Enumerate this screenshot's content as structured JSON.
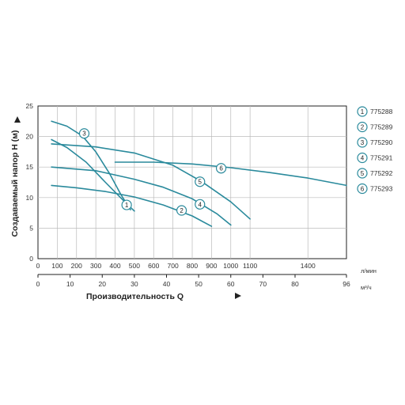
{
  "chart_data": {
    "type": "line",
    "ylabel": "Создаваемый напор Н (м)",
    "xlabel": "Производительность Q",
    "x_unit_lmin": "л/мин",
    "x_unit_m3h": "м³/ч",
    "ylim": [
      0,
      25
    ],
    "xlim_lmin": [
      0,
      1600
    ],
    "xlim_m3h": [
      0,
      96
    ],
    "y_ticks": [
      "0",
      "5",
      "10",
      "15",
      "20",
      "25"
    ],
    "x_ticks_lmin": [
      "0",
      "100",
      "200",
      "300",
      "400",
      "500",
      "600",
      "700",
      "800",
      "900",
      "1000",
      "1100",
      "1400"
    ],
    "x_ticks_m3h": [
      "0",
      "10",
      "20",
      "30",
      "40",
      "50",
      "60",
      "70",
      "80",
      "96"
    ],
    "grid": true,
    "legend_position": "right",
    "curve_color": "#2a8a9c",
    "series": [
      {
        "name": "775288",
        "marker": "1",
        "x": [
          70,
          150,
          250,
          350,
          450,
          500
        ],
        "y": [
          19.5,
          18.2,
          15.8,
          12.5,
          9.3,
          7.8
        ]
      },
      {
        "name": "775289",
        "marker": "2",
        "x": [
          70,
          200,
          350,
          500,
          650,
          800,
          900
        ],
        "y": [
          12.0,
          11.6,
          11.0,
          10.1,
          8.8,
          7.0,
          5.3
        ]
      },
      {
        "name": "775290",
        "marker": "3",
        "x": [
          70,
          150,
          230,
          300,
          370,
          430,
          480
        ],
        "y": [
          22.5,
          21.7,
          20.1,
          17.5,
          14.0,
          10.5,
          8.0
        ]
      },
      {
        "name": "775291",
        "marker": "4",
        "x": [
          70,
          300,
          500,
          650,
          800,
          930,
          1000
        ],
        "y": [
          15.0,
          14.4,
          13.0,
          11.7,
          9.8,
          7.3,
          5.5
        ]
      },
      {
        "name": "775292",
        "marker": "5",
        "x": [
          70,
          300,
          500,
          700,
          850,
          1000,
          1100
        ],
        "y": [
          18.8,
          18.3,
          17.3,
          15.3,
          12.6,
          9.3,
          6.5
        ]
      },
      {
        "name": "775293",
        "marker": "6",
        "x": [
          400,
          600,
          800,
          1000,
          1200,
          1400,
          1600
        ],
        "y": [
          15.8,
          15.8,
          15.5,
          14.9,
          14.1,
          13.2,
          12.0
        ]
      }
    ]
  }
}
